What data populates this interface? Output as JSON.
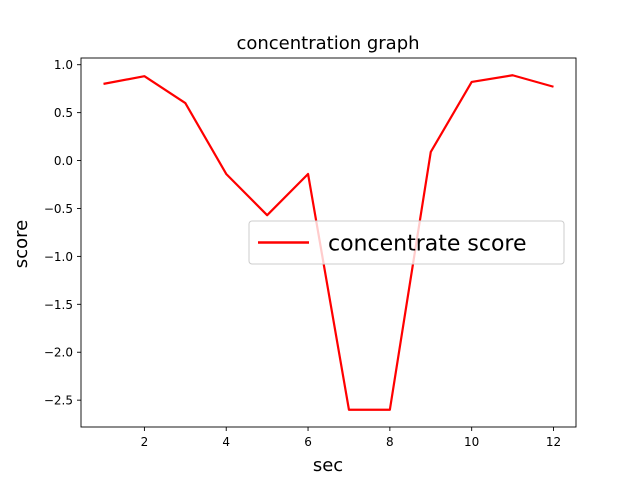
{
  "chart_data": {
    "type": "line",
    "title": "concentration graph",
    "xlabel": "sec",
    "ylabel": "score",
    "xlim": [
      0.45,
      12.55
    ],
    "ylim": [
      -2.78,
      1.07
    ],
    "xticks": [
      2,
      4,
      6,
      8,
      10,
      12
    ],
    "xtick_labels": [
      "2",
      "4",
      "6",
      "8",
      "10",
      "12"
    ],
    "yticks": [
      1.0,
      0.5,
      0.0,
      -0.5,
      -1.0,
      -1.5,
      -2.0,
      -2.5
    ],
    "ytick_labels": [
      "1.0",
      "0.5",
      "0.0",
      "−0.5",
      "−1.0",
      "−1.5",
      "−2.0",
      "−2.5"
    ],
    "grid": false,
    "legend_position": "center-right",
    "series": [
      {
        "name": "concentrate score",
        "color": "#ff0000",
        "x": [
          1,
          2,
          3,
          4,
          5,
          6,
          7,
          8,
          9,
          10,
          11,
          12
        ],
        "y": [
          0.8,
          0.88,
          0.6,
          -0.14,
          -0.57,
          -0.14,
          -2.6,
          -2.6,
          0.09,
          0.82,
          0.89,
          0.77
        ]
      }
    ]
  }
}
